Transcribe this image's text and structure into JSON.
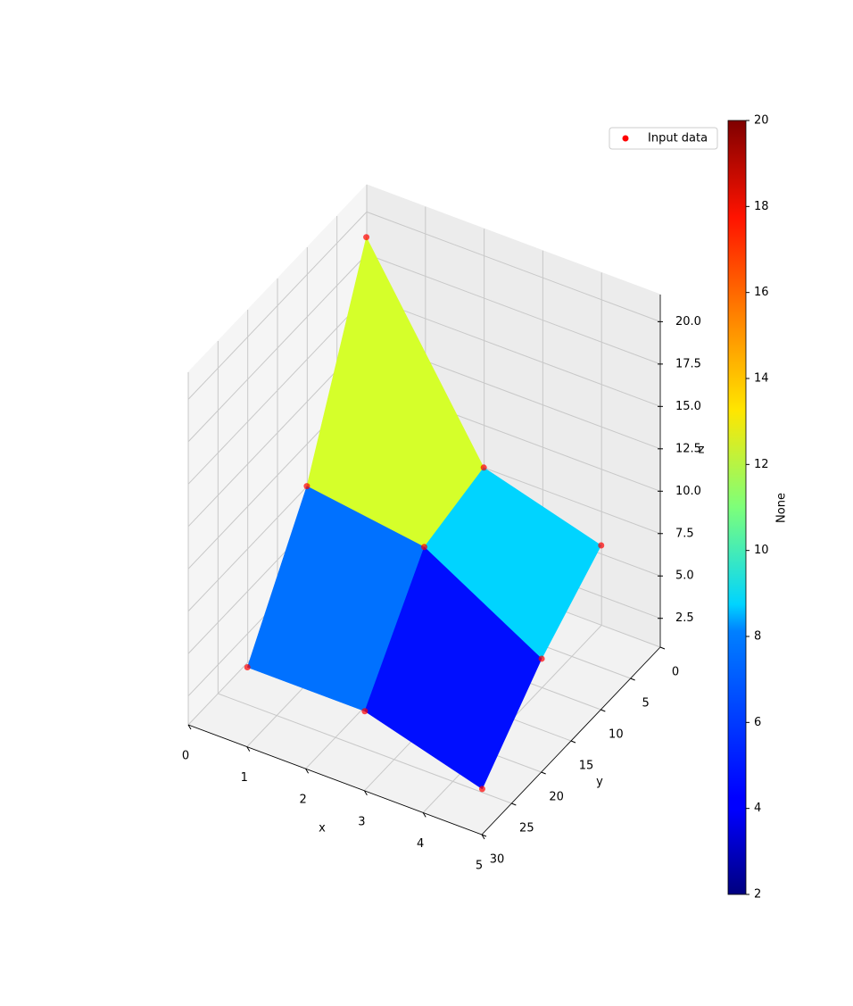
{
  "chart_data": {
    "type": "surface3d",
    "x": [
      0.5,
      2.5,
      4.5
    ],
    "y": [
      5,
      15,
      25
    ],
    "z": [
      [
        21,
        10,
        8
      ],
      [
        10,
        9,
        5
      ],
      [
        3,
        3,
        1
      ]
    ],
    "xlabel": "x",
    "ylabel": "y",
    "zlabel": "z",
    "xlim": [
      0,
      5
    ],
    "ylim": [
      0,
      30
    ],
    "zlim": [
      0.8,
      21.6
    ],
    "xticks": [
      0,
      1,
      2,
      3,
      4,
      5
    ],
    "yticks": [
      0,
      5,
      10,
      15,
      20,
      25,
      30
    ],
    "zticks": [
      {
        "value": 2.5,
        "label": "2.5"
      },
      {
        "value": 5,
        "label": "5.0"
      },
      {
        "value": 7.5,
        "label": "7.5"
      },
      {
        "value": 10,
        "label": "10.0"
      },
      {
        "value": 12.5,
        "label": "12.5"
      },
      {
        "value": 15,
        "label": "15.0"
      },
      {
        "value": 17.5,
        "label": "17.5"
      },
      {
        "value": 20,
        "label": "20.0"
      }
    ],
    "grid": true,
    "colormap": "jet",
    "colorbar": {
      "label": "None",
      "lim": [
        2,
        20
      ],
      "ticks": [
        2,
        4,
        6,
        8,
        10,
        12,
        14,
        16,
        18,
        20
      ]
    },
    "series": [
      {
        "name": "Input data",
        "color": "#ff0000"
      }
    ],
    "legend": "upper right"
  }
}
